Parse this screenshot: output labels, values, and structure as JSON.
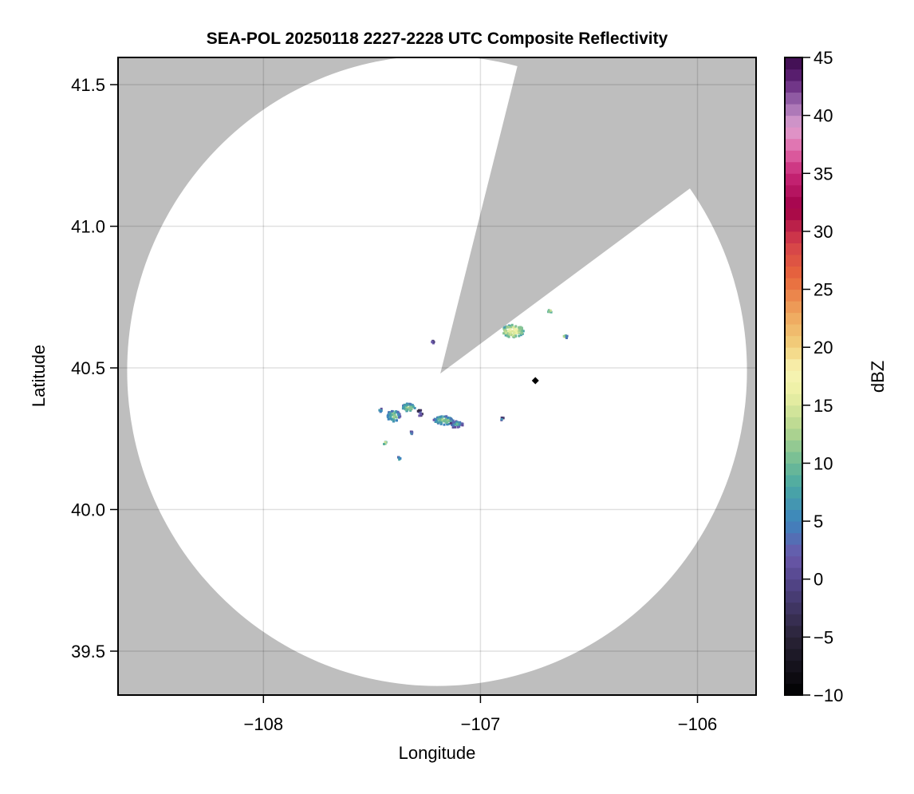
{
  "chart_data": {
    "type": "heatmap",
    "title": "SEA-POL 20250118 2227-2228 UTC Composite Reflectivity",
    "xlabel": "Longitude",
    "ylabel": "Latitude",
    "xlim": [
      -108.67,
      -105.73
    ],
    "ylim": [
      39.345,
      41.596
    ],
    "xticks": [
      -108,
      -107,
      -106
    ],
    "xtick_labels": [
      "−108",
      "−107",
      "−106"
    ],
    "yticks": [
      39.5,
      40.0,
      40.5,
      41.0,
      41.5
    ],
    "ytick_labels": [
      "39.5",
      "40.0",
      "40.5",
      "41.0",
      "41.5"
    ],
    "grid": true,
    "background_color": "#bebebe",
    "coverage_color": "#ffffff",
    "radar_coverage": {
      "center_lon": -107.2,
      "center_lat": 40.49,
      "range_lon_deg": 1.428,
      "range_lat_deg": 1.113,
      "blocked_sector": {
        "apex": [
          -107.185,
          40.48
        ],
        "edge1": [
          -106.842,
          41.528
        ],
        "edge2": [
          -106.059,
          41.12
        ]
      }
    },
    "marker": {
      "lon": -106.747,
      "lat": 40.455,
      "shape": "diamond",
      "color": "#000000"
    },
    "echoes": [
      {
        "lon": -106.85,
        "lat": 40.63,
        "dbz": 17,
        "extent_lon": 0.05,
        "extent_lat": 0.022
      },
      {
        "lon": -106.68,
        "lat": 40.7,
        "dbz": 16,
        "extent_lon": 0.008,
        "extent_lat": 0.004
      },
      {
        "lon": -106.61,
        "lat": 40.61,
        "dbz": 12,
        "extent_lon": 0.012,
        "extent_lat": 0.008
      },
      {
        "lon": -107.22,
        "lat": 40.59,
        "dbz": 4,
        "extent_lon": 0.006,
        "extent_lat": 0.006
      },
      {
        "lon": -107.4,
        "lat": 40.33,
        "dbz": 12,
        "extent_lon": 0.03,
        "extent_lat": 0.02
      },
      {
        "lon": -107.33,
        "lat": 40.36,
        "dbz": 13,
        "extent_lon": 0.03,
        "extent_lat": 0.014
      },
      {
        "lon": -107.28,
        "lat": 40.34,
        "dbz": 5,
        "extent_lon": 0.012,
        "extent_lat": 0.012
      },
      {
        "lon": -107.17,
        "lat": 40.315,
        "dbz": 12,
        "extent_lon": 0.045,
        "extent_lat": 0.016
      },
      {
        "lon": -107.11,
        "lat": 40.3,
        "dbz": 9,
        "extent_lon": 0.03,
        "extent_lat": 0.012
      },
      {
        "lon": -107.46,
        "lat": 40.35,
        "dbz": 8,
        "extent_lon": 0.008,
        "extent_lat": 0.006
      },
      {
        "lon": -107.44,
        "lat": 40.235,
        "dbz": 15,
        "extent_lon": 0.007,
        "extent_lat": 0.006
      },
      {
        "lon": -107.32,
        "lat": 40.27,
        "dbz": 8,
        "extent_lon": 0.003,
        "extent_lat": 0.006
      },
      {
        "lon": -106.9,
        "lat": 40.32,
        "dbz": 6,
        "extent_lon": 0.006,
        "extent_lat": 0.004
      },
      {
        "lon": -107.375,
        "lat": 40.18,
        "dbz": 10,
        "extent_lon": 0.004,
        "extent_lat": 0.003
      }
    ],
    "colorbar": {
      "label": "dBZ",
      "range": [
        -10,
        45
      ],
      "step": 1,
      "ticks": [
        -10,
        -5,
        0,
        5,
        10,
        15,
        20,
        25,
        30,
        35,
        40,
        45
      ],
      "tick_labels": [
        "−10",
        "−5",
        "0",
        "5",
        "10",
        "15",
        "20",
        "25",
        "30",
        "35",
        "40",
        "45"
      ],
      "colormap": [
        [
          -10,
          "#000000"
        ],
        [
          -5,
          "#2a2438"
        ],
        [
          0,
          "#54468c"
        ],
        [
          2,
          "#6a58aa"
        ],
        [
          5,
          "#3d84bd"
        ],
        [
          8,
          "#4aa8a4"
        ],
        [
          10,
          "#6fbb95"
        ],
        [
          13,
          "#b6d78f"
        ],
        [
          16,
          "#ecf0a4"
        ],
        [
          18,
          "#f8f4b4"
        ],
        [
          20,
          "#f2d27e"
        ],
        [
          23,
          "#eea45c"
        ],
        [
          26,
          "#e8683c"
        ],
        [
          29,
          "#d4404a"
        ],
        [
          32,
          "#a20048"
        ],
        [
          35,
          "#c82878"
        ],
        [
          37,
          "#e068a8"
        ],
        [
          39,
          "#dea0d0"
        ],
        [
          41,
          "#9e6cb0"
        ],
        [
          43,
          "#62247a"
        ],
        [
          45,
          "#3a0a4a"
        ]
      ]
    }
  }
}
